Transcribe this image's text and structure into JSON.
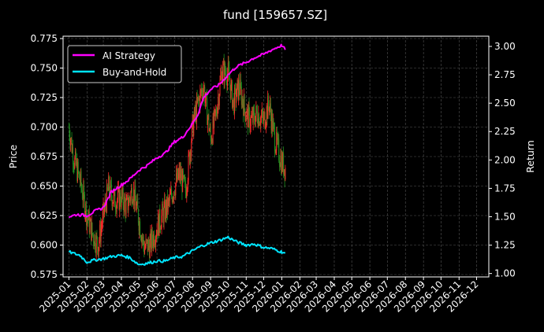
{
  "chart_data": {
    "type": "line",
    "title": "fund [159657.SZ]",
    "xlabel": "",
    "ylabel_left": "Price",
    "ylabel_right": "Return",
    "x_ticks": [
      "2025-01",
      "2025-02",
      "2025-03",
      "2025-04",
      "2025-05",
      "2025-06",
      "2025-07",
      "2025-08",
      "2025-09",
      "2025-10",
      "2025-11",
      "2025-12",
      "2026-01",
      "2026-02",
      "2026-03",
      "2026-04",
      "2026-05",
      "2026-06",
      "2026-07",
      "2026-08",
      "2026-09",
      "2026-10",
      "2026-11",
      "2026-12"
    ],
    "y_left_ticks": [
      "0.575",
      "0.600",
      "0.625",
      "0.650",
      "0.675",
      "0.700",
      "0.725",
      "0.750",
      "0.775"
    ],
    "y_right_ticks": [
      "1.00",
      "1.25",
      "1.50",
      "1.75",
      "2.00",
      "2.25",
      "2.50",
      "2.75",
      "3.00"
    ],
    "ylim_left": [
      0.573,
      0.777
    ],
    "ylim_right": [
      0.97,
      3.09
    ],
    "xlim": [
      "2024-12-22",
      "2026-12-22"
    ],
    "grid": true,
    "legend_position": "top-left",
    "legend": [
      "AI Strategy",
      "Buy-and-Hold"
    ],
    "colors": {
      "ai_strategy": "#ff00ff",
      "buy_and_hold": "#00e5ff",
      "candle_up": "#ff2a2a",
      "candle_down": "#1f8f1f",
      "background": "#000000"
    },
    "series": [
      {
        "name": "AI Strategy",
        "axis": "right",
        "x": [
          "2025-01-01",
          "2025-01-15",
          "2025-02-01",
          "2025-02-15",
          "2025-03-01",
          "2025-03-15",
          "2025-04-01",
          "2025-04-15",
          "2025-05-01",
          "2025-05-15",
          "2025-06-01",
          "2025-06-15",
          "2025-07-01",
          "2025-07-15",
          "2025-08-01",
          "2025-08-10",
          "2025-08-20",
          "2025-09-01",
          "2025-09-15",
          "2025-10-01",
          "2025-10-15",
          "2025-11-01",
          "2025-11-15",
          "2025-12-01",
          "2025-12-15",
          "2026-01-01",
          "2026-01-07"
        ],
        "values": [
          1.5,
          1.52,
          1.51,
          1.55,
          1.58,
          1.72,
          1.78,
          1.83,
          1.91,
          1.95,
          2.02,
          2.06,
          2.16,
          2.2,
          2.32,
          2.4,
          2.55,
          2.62,
          2.66,
          2.75,
          2.82,
          2.86,
          2.9,
          2.93,
          2.97,
          3.01,
          2.97
        ]
      },
      {
        "name": "Buy-and-Hold",
        "axis": "right",
        "x": [
          "2025-01-01",
          "2025-01-20",
          "2025-02-01",
          "2025-02-15",
          "2025-03-01",
          "2025-03-15",
          "2025-04-01",
          "2025-04-15",
          "2025-05-01",
          "2025-05-15",
          "2025-06-01",
          "2025-06-15",
          "2025-07-01",
          "2025-07-15",
          "2025-08-01",
          "2025-08-15",
          "2025-09-01",
          "2025-09-15",
          "2025-10-01",
          "2025-10-15",
          "2025-11-01",
          "2025-11-15",
          "2025-12-01",
          "2025-12-15",
          "2026-01-01",
          "2026-01-07"
        ],
        "values": [
          1.19,
          1.16,
          1.1,
          1.12,
          1.13,
          1.15,
          1.16,
          1.14,
          1.08,
          1.09,
          1.11,
          1.11,
          1.14,
          1.15,
          1.2,
          1.24,
          1.27,
          1.29,
          1.32,
          1.28,
          1.25,
          1.26,
          1.23,
          1.22,
          1.19,
          1.18
        ]
      },
      {
        "name": "Price",
        "axis": "left",
        "style": "candlestick",
        "x": [
          "2025-01-01",
          "2025-01-10",
          "2025-01-20",
          "2025-02-01",
          "2025-02-10",
          "2025-02-20",
          "2025-03-01",
          "2025-03-10",
          "2025-03-20",
          "2025-04-01",
          "2025-04-10",
          "2025-04-20",
          "2025-05-01",
          "2025-05-10",
          "2025-05-20",
          "2025-06-01",
          "2025-06-10",
          "2025-06-20",
          "2025-07-01",
          "2025-07-10",
          "2025-07-20",
          "2025-08-01",
          "2025-08-10",
          "2025-08-20",
          "2025-09-01",
          "2025-09-10",
          "2025-09-20",
          "2025-10-01",
          "2025-10-10",
          "2025-10-20",
          "2025-11-01",
          "2025-11-10",
          "2025-11-20",
          "2025-12-01",
          "2025-12-10",
          "2025-12-20",
          "2026-01-01",
          "2026-01-07"
        ],
        "values": [
          0.7,
          0.672,
          0.655,
          0.625,
          0.61,
          0.6,
          0.625,
          0.648,
          0.638,
          0.64,
          0.632,
          0.648,
          0.622,
          0.598,
          0.6,
          0.615,
          0.625,
          0.633,
          0.65,
          0.66,
          0.645,
          0.7,
          0.72,
          0.735,
          0.69,
          0.71,
          0.748,
          0.745,
          0.72,
          0.735,
          0.71,
          0.705,
          0.712,
          0.705,
          0.72,
          0.69,
          0.67,
          0.665
        ]
      }
    ]
  }
}
